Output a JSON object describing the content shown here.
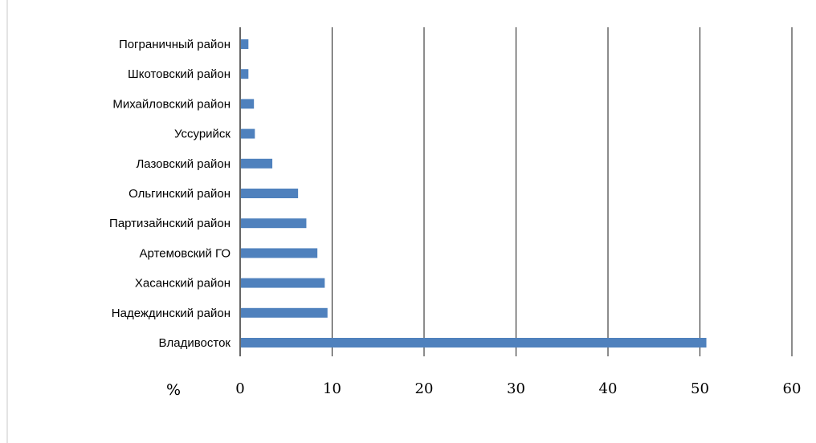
{
  "chart_data": {
    "type": "bar",
    "orientation": "horizontal",
    "title": "",
    "xlabel": "%",
    "ylabel": "",
    "categories": [
      "Пограничный район",
      "Шкотовский район",
      "Михайловский район",
      "Уссурийск",
      "Лазовский район",
      "Ольгинский район",
      "Партизайнский район",
      "Артемовский ГО",
      "Хасанский район",
      "Надеждинский район",
      "Владивосток"
    ],
    "values": [
      0.9,
      0.9,
      1.5,
      1.6,
      3.5,
      6.3,
      7.2,
      8.4,
      9.2,
      9.5,
      50.7
    ],
    "xlim": [
      0,
      60
    ],
    "xticks": [
      "0",
      "10",
      "20",
      "30",
      "40",
      "50",
      "60"
    ],
    "grid": "vertical",
    "legend": "none",
    "colors": {
      "bar": "#4f81bd",
      "grid": "#000000"
    }
  }
}
